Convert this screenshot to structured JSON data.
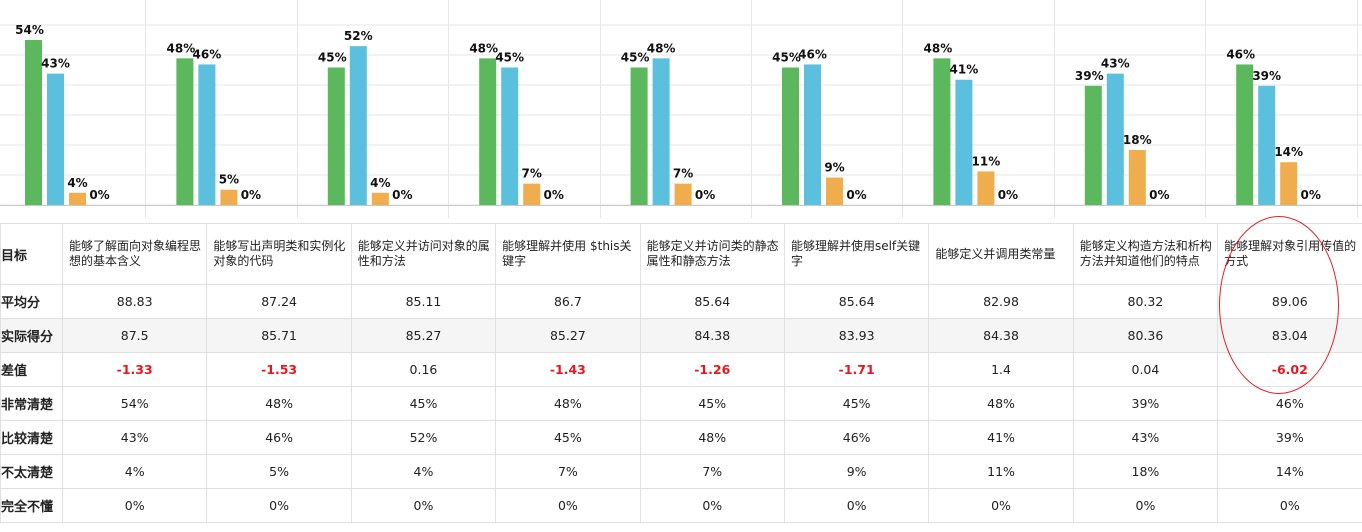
{
  "chart_data": {
    "type": "bar",
    "categories": [
      "能够了解面向对象编程思想的基本含义",
      "能够写出声明类和实例化对象的代码",
      "能够定义并访问对象的属性和方法",
      "能够理解并使用 $this关键字",
      "能够定义并访问类的静态属性和静态方法",
      "能够理解并使用self关键字",
      "能够定义并调用类常量",
      "能够定义构造方法和析构方法并知道他们的特点",
      "能够理解对象引用传值的方式"
    ],
    "series": [
      {
        "color": "#5cb85c",
        "values": [
          54,
          48,
          45,
          48,
          45,
          45,
          48,
          39,
          46
        ]
      },
      {
        "color": "#5bc0de",
        "values": [
          43,
          46,
          52,
          45,
          48,
          46,
          41,
          43,
          39
        ]
      },
      {
        "color": "#f0ad4e",
        "values": [
          4,
          5,
          4,
          7,
          7,
          9,
          11,
          18,
          14
        ]
      },
      {
        "color": "#d9534f",
        "values": [
          0,
          0,
          0,
          0,
          0,
          0,
          0,
          0,
          0
        ]
      }
    ],
    "value_suffix": "%",
    "ylim": [
      0,
      60
    ],
    "grid": true,
    "legend": "none"
  },
  "table": {
    "header_label": "目标",
    "rows": [
      {
        "label": "平均分",
        "values": [
          "88.83",
          "87.24",
          "85.11",
          "86.7",
          "85.64",
          "85.64",
          "82.98",
          "80.32",
          "89.06"
        ]
      },
      {
        "label": "实际得分",
        "values": [
          "87.5",
          "85.71",
          "85.27",
          "85.27",
          "84.38",
          "83.93",
          "84.38",
          "80.36",
          "83.04"
        ]
      },
      {
        "label": "差值",
        "values": [
          "-1.33",
          "-1.53",
          "0.16",
          "-1.43",
          "-1.26",
          "-1.71",
          "1.4",
          "0.04",
          "-6.02"
        ]
      },
      {
        "label": "非常清楚",
        "values": [
          "54%",
          "48%",
          "45%",
          "48%",
          "45%",
          "45%",
          "48%",
          "39%",
          "46%"
        ]
      },
      {
        "label": "比较清楚",
        "values": [
          "43%",
          "46%",
          "52%",
          "45%",
          "48%",
          "46%",
          "41%",
          "43%",
          "39%"
        ]
      },
      {
        "label": "不太清楚",
        "values": [
          "4%",
          "5%",
          "4%",
          "7%",
          "7%",
          "9%",
          "11%",
          "18%",
          "14%"
        ]
      },
      {
        "label": "完全不懂",
        "values": [
          "0%",
          "0%",
          "0%",
          "0%",
          "0%",
          "0%",
          "0%",
          "0%",
          "0%"
        ]
      }
    ]
  },
  "colors": {
    "negative": "#e8171f",
    "annotation": "#e0202a"
  }
}
